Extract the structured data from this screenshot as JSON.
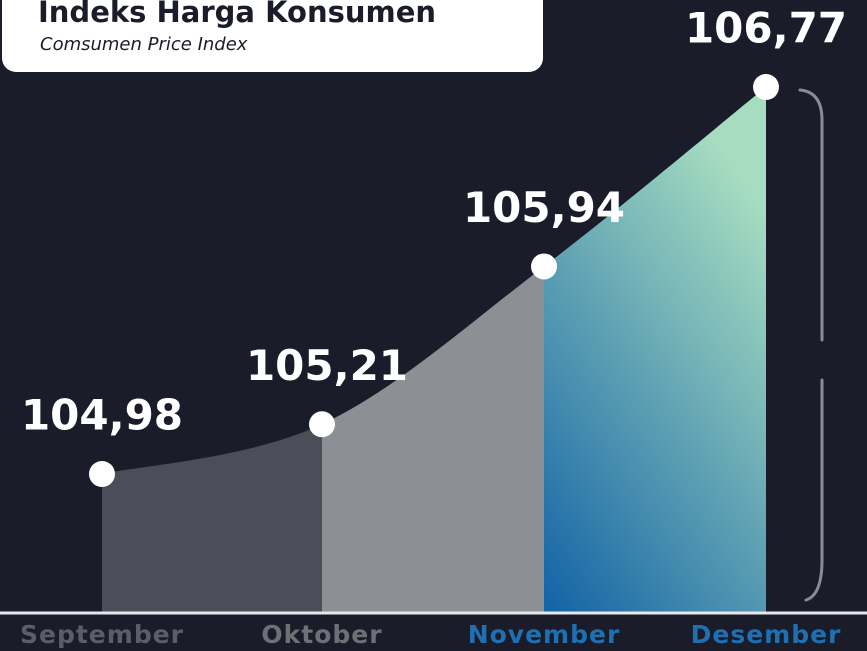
{
  "chart_data": {
    "type": "area",
    "title": "Indeks Harga Konsumen",
    "subtitle": "Comsumen Price Index",
    "categories": [
      "September",
      "Oktober",
      "November",
      "Desember"
    ],
    "values": [
      104.98,
      105.21,
      105.94,
      106.77
    ],
    "value_labels": [
      "104,98",
      "105,21",
      "105,94",
      "106,77"
    ],
    "segment_colors": [
      "#4b4e58",
      "#8e8f95",
      "#1262a6"
    ],
    "gradient_top": "#a6dcc0",
    "label_colors": [
      "#5b5e67",
      "#6e7076",
      "#1f6fb2",
      "#1f6fb2"
    ],
    "background": "#1a1d29"
  }
}
